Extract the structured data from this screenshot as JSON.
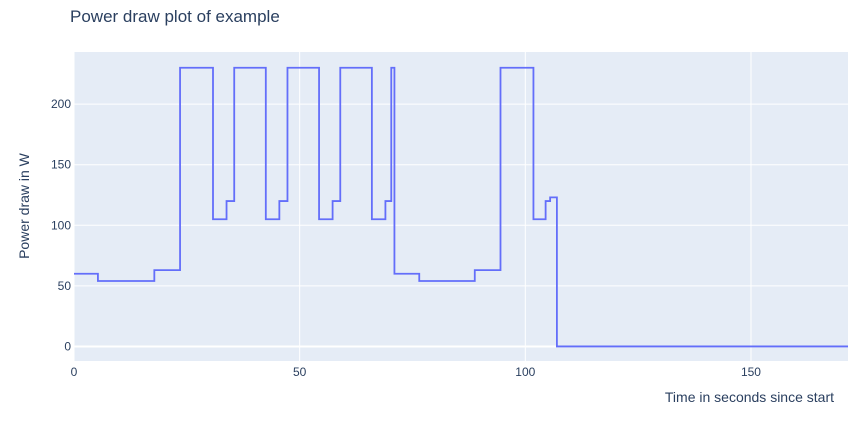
{
  "chart_data": {
    "type": "line",
    "line_shape": "step",
    "title": "Power draw plot of example",
    "xlabel": "Time in seconds since start",
    "ylabel": "Power draw in W",
    "xlim": [
      0,
      171.5
    ],
    "ylim": [
      -12,
      243
    ],
    "x_ticks": [
      0,
      50,
      100,
      150
    ],
    "y_ticks": [
      0,
      50,
      100,
      150,
      200
    ],
    "grid": true,
    "legend": "none",
    "colors": {
      "plot_background": "#e5ecf6",
      "grid": "#ffffff",
      "line": "#636efa",
      "text": "#2a3f5f"
    },
    "series": [
      {
        "x": [
          0,
          5.3,
          17.8,
          23.5,
          30.8,
          33.8,
          35.5,
          42.5,
          45.5,
          47.3,
          54.3,
          57.3,
          59,
          66,
          69,
          70.3,
          71,
          73,
          76.5,
          88.8,
          94.5,
          101.8,
          104.5,
          105.5,
          106.8,
          107,
          171.5
        ],
        "y": [
          60,
          54,
          63,
          230,
          105,
          120,
          230,
          105,
          120,
          230,
          105,
          120,
          230,
          105,
          120,
          230,
          60,
          60,
          54,
          63,
          230,
          105,
          120,
          123,
          123,
          0,
          0
        ]
      }
    ]
  }
}
